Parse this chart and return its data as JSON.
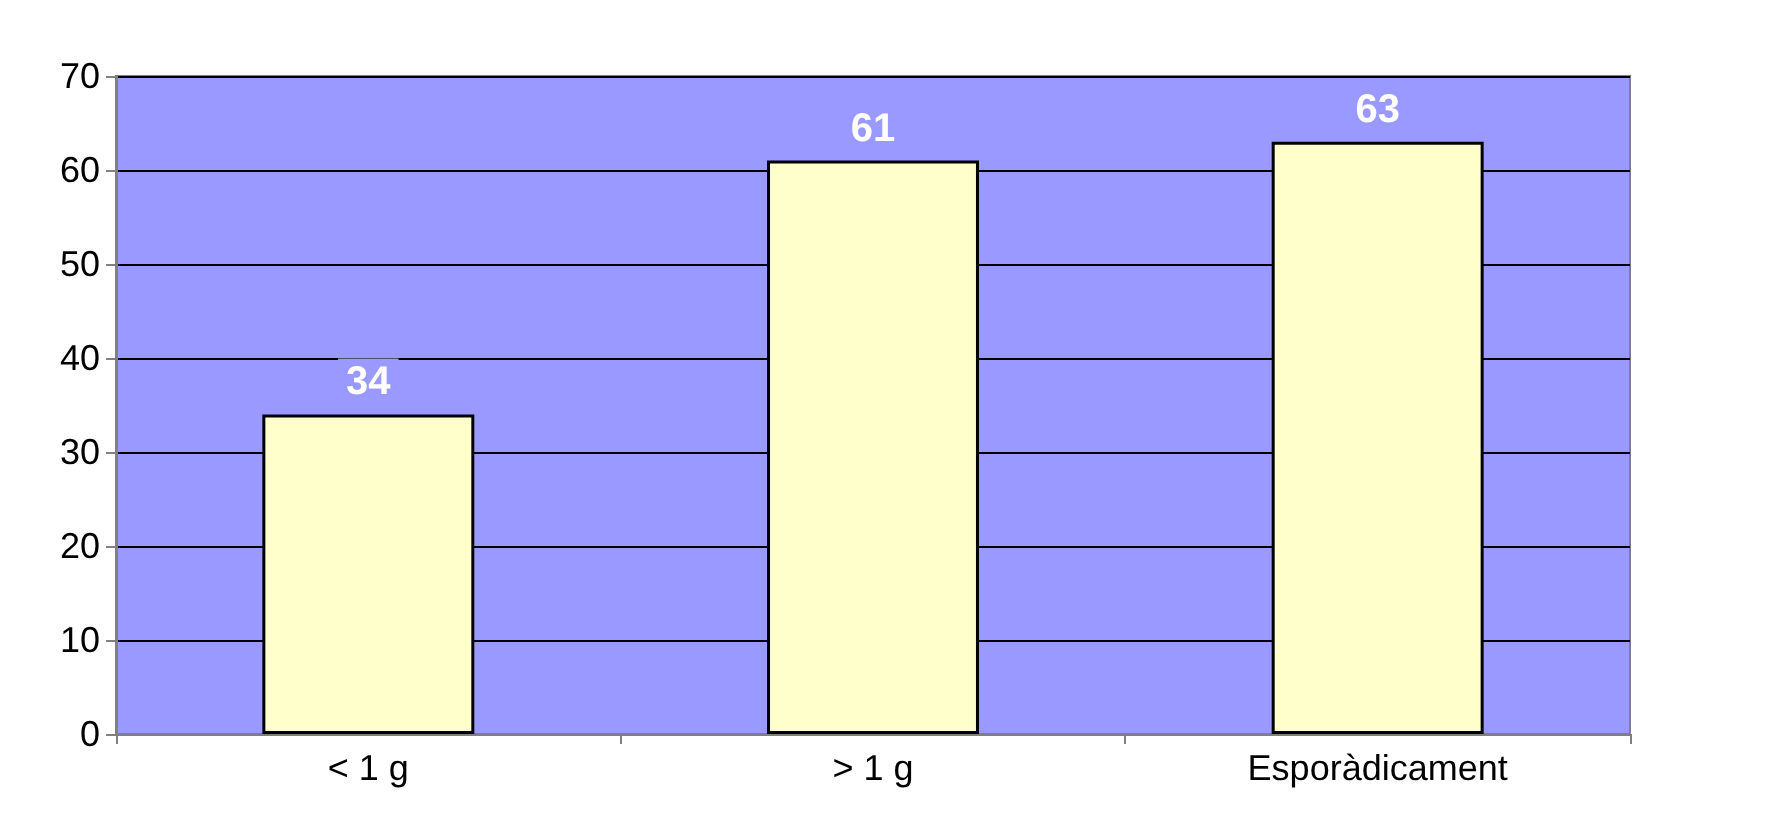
{
  "chart_data": {
    "type": "bar",
    "categories": [
      "< 1 g",
      "> 1 g",
      "Esporàdicament"
    ],
    "values": [
      34,
      61,
      63
    ],
    "color": "#ffffcc",
    "ylim": [
      0,
      70
    ],
    "yticks": [
      0,
      10,
      20,
      30,
      40,
      50,
      60,
      70
    ],
    "grid": "y",
    "data_labels": true
  }
}
